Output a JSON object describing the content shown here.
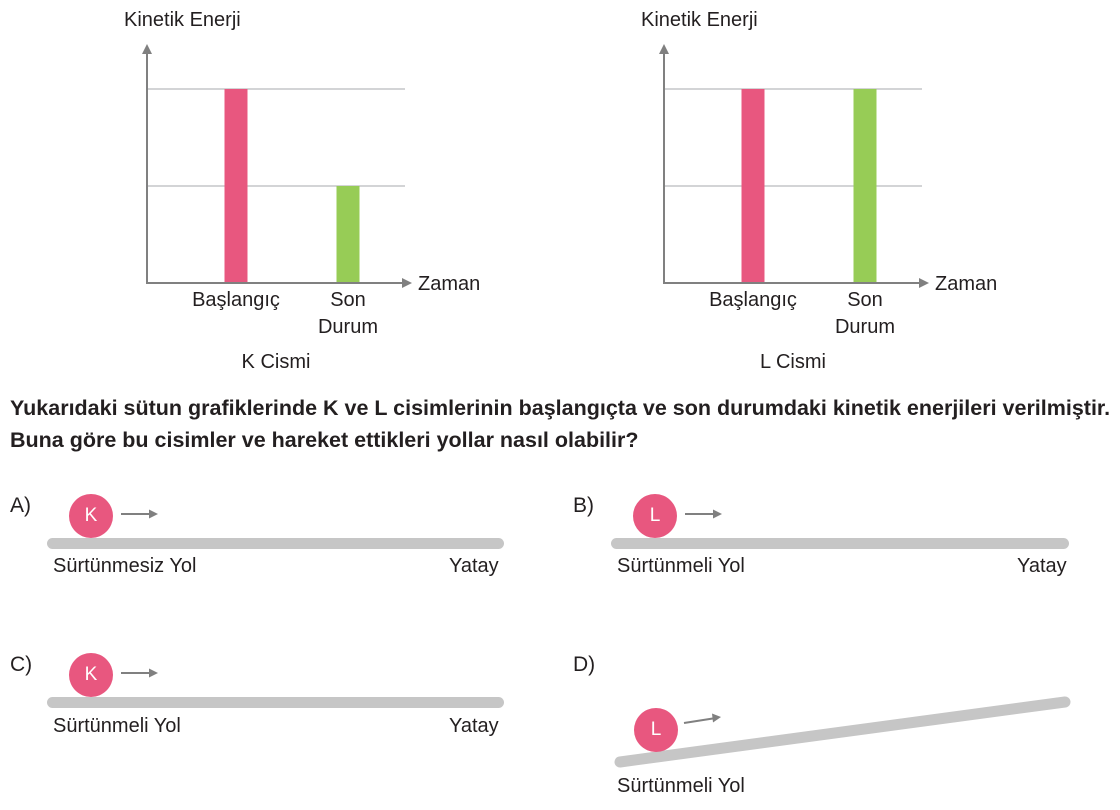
{
  "chart_data": [
    {
      "type": "bar",
      "ylabel": "Kinetik Enerji",
      "xlabel": "Zaman",
      "categories": [
        "Başlangıç",
        "Son\nDurum"
      ],
      "values": [
        2,
        1
      ],
      "colors": [
        "#e8577f",
        "#97cc56"
      ],
      "ylim": [
        0,
        2
      ],
      "grid": true,
      "caption": "K Cismi"
    },
    {
      "type": "bar",
      "ylabel": "Kinetik Enerji",
      "xlabel": "Zaman",
      "categories": [
        "Başlangıç",
        "Son\nDurum"
      ],
      "values": [
        2,
        2
      ],
      "colors": [
        "#e8577f",
        "#97cc56"
      ],
      "ylim": [
        0,
        2
      ],
      "grid": true,
      "caption": "L Cismi"
    }
  ],
  "charts": [
    {
      "ylabel": "Kinetik Enerji",
      "xlabel": "Zaman",
      "cat1": "Başlangıç",
      "cat2a": "Son",
      "cat2b": "Durum",
      "caption": "K Cismi"
    },
    {
      "ylabel": "Kinetik Enerji",
      "xlabel": "Zaman",
      "cat1": "Başlangıç",
      "cat2a": "Son",
      "cat2b": "Durum",
      "caption": "L Cismi"
    }
  ],
  "question": "Yukarıdaki sütun grafiklerinde K ve L cisimlerinin başlangıçta ve son durumdaki kinetik enerjileri verilmiştir. Buna göre bu cisimler ve hareket ettikleri yollar nasıl olabilir?",
  "options": [
    {
      "letter": "A)",
      "ball": "K",
      "road": "Sürtünmesiz Yol",
      "orientation": "Yatay"
    },
    {
      "letter": "B)",
      "ball": "L",
      "road": "Sürtünmeli Yol",
      "orientation": "Yatay"
    },
    {
      "letter": "C)",
      "ball": "K",
      "road": "Sürtünmeli Yol",
      "orientation": "Yatay"
    },
    {
      "letter": "D)",
      "ball": "L",
      "road": "Sürtünmeli Yol",
      "orientation": ""
    }
  ],
  "colors": {
    "ball": "#e8577f",
    "road": "#c6c6c6",
    "bar_start": "#e8577f",
    "bar_end": "#97cc56",
    "axis": "#808080"
  }
}
